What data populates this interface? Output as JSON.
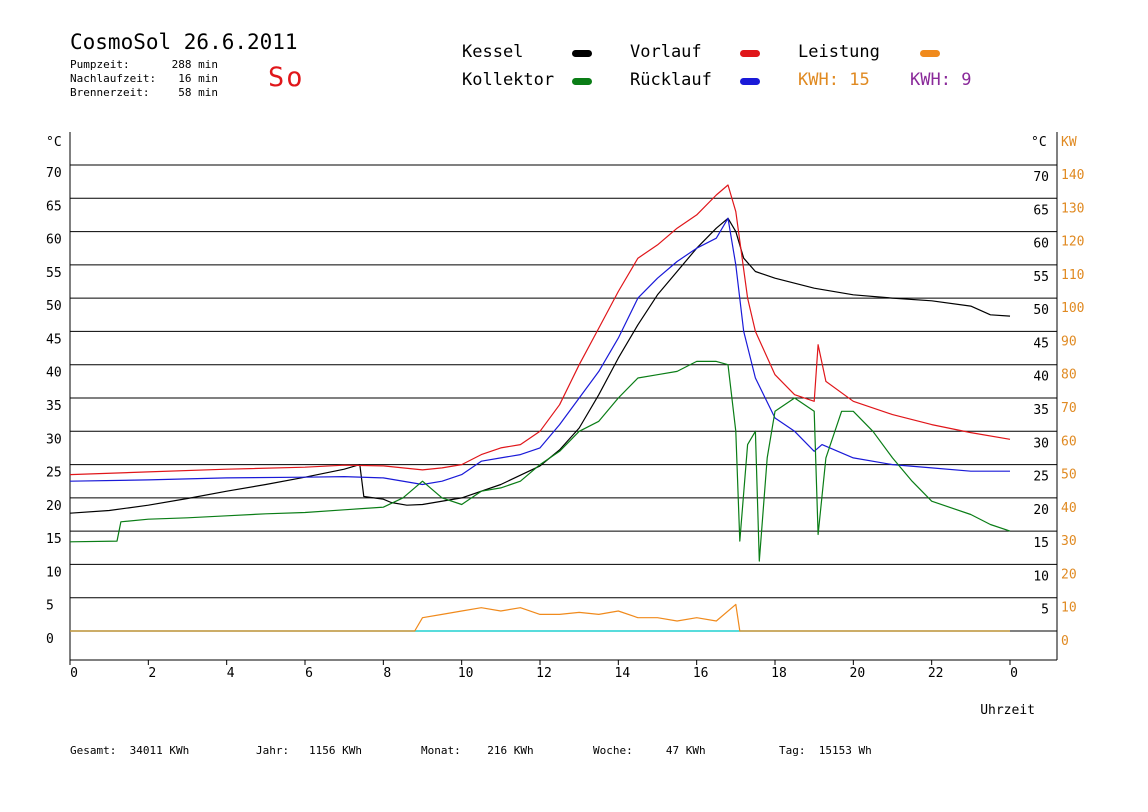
{
  "header": {
    "title": "CosmoSol 26.6.2011",
    "day": "So",
    "stats": [
      {
        "label": "Pumpzeit:",
        "value": "288 min"
      },
      {
        "label": "Nachlaufzeit:",
        "value": "16 min"
      },
      {
        "label": "Brennerzeit:",
        "value": "58 min"
      }
    ]
  },
  "legend": {
    "kessel": {
      "label": "Kessel",
      "color": "#000000"
    },
    "vorlauf": {
      "label": "Vorlauf",
      "color": "#e0161a"
    },
    "leistung": {
      "label": "Leistung",
      "color": "#f08a1c"
    },
    "kollektor": {
      "label": "Kollektor",
      "color": "#0a7d16"
    },
    "ruecklauf": {
      "label": "Rücklauf",
      "color": "#1a1ad8"
    },
    "kwh1": {
      "label": "KWH:",
      "value": "15",
      "color": "#e08a22"
    },
    "kwh2": {
      "label": "KWH:",
      "value": "9",
      "color": "#8a2a9a"
    }
  },
  "footer": {
    "gesamt": {
      "label": "Gesamt:",
      "value": "34011 KWh"
    },
    "jahr": {
      "label": "Jahr:",
      "value": "1156 KWh"
    },
    "monat": {
      "label": "Monat:",
      "value": "216 KWh"
    },
    "woche": {
      "label": "Woche:",
      "value": "47 KWh"
    },
    "tag": {
      "label": "Tag:",
      "value": "15153 Wh"
    }
  },
  "chart_data": {
    "type": "line",
    "xlabel": "Uhrzeit",
    "ylabel_left": "°C",
    "ylabel_right_temp": "°C",
    "ylabel_right_power": "KW",
    "xlim": [
      0,
      24
    ],
    "ylim": [
      -3,
      73
    ],
    "x_ticks": [
      "0",
      "2",
      "4",
      "6",
      "8",
      "10",
      "12",
      "14",
      "16",
      "18",
      "20",
      "22",
      "0"
    ],
    "y_ticks_left": [
      0,
      5,
      10,
      15,
      20,
      25,
      30,
      35,
      40,
      45,
      50,
      55,
      60,
      65,
      70
    ],
    "y_ticks_right_temp": [
      5,
      10,
      15,
      20,
      25,
      30,
      35,
      40,
      45,
      50,
      55,
      60,
      65,
      70
    ],
    "y_ticks_right_kw": [
      0,
      10,
      20,
      30,
      40,
      50,
      60,
      70,
      80,
      90,
      100,
      110,
      120,
      130,
      140
    ],
    "grid": true,
    "series": [
      {
        "name": "Kessel",
        "color": "#000000",
        "points": [
          [
            0,
            17.7
          ],
          [
            1,
            18.1
          ],
          [
            2,
            18.9
          ],
          [
            3,
            19.9
          ],
          [
            4,
            21.0
          ],
          [
            5,
            22.0
          ],
          [
            6,
            23.1
          ],
          [
            7,
            24.3
          ],
          [
            7.4,
            25.0
          ],
          [
            7.5,
            20.2
          ],
          [
            8,
            19.8
          ],
          [
            8.2,
            19.3
          ],
          [
            8.6,
            18.9
          ],
          [
            9,
            19.0
          ],
          [
            10,
            20.0
          ],
          [
            11,
            22.0
          ],
          [
            12,
            24.8
          ],
          [
            12.5,
            27.2
          ],
          [
            13,
            30.5
          ],
          [
            13.5,
            35.5
          ],
          [
            14,
            41.0
          ],
          [
            14.5,
            46.0
          ],
          [
            15,
            50.5
          ],
          [
            15.5,
            54.0
          ],
          [
            16,
            57.5
          ],
          [
            16.5,
            60.5
          ],
          [
            16.8,
            62.0
          ],
          [
            17,
            60.0
          ],
          [
            17.2,
            56.0
          ],
          [
            17.5,
            54.0
          ],
          [
            18,
            53.0
          ],
          [
            19,
            51.5
          ],
          [
            20,
            50.5
          ],
          [
            21,
            50.0
          ],
          [
            22,
            49.6
          ],
          [
            23,
            48.8
          ],
          [
            23.5,
            47.5
          ],
          [
            24,
            47.3
          ]
        ]
      },
      {
        "name": "Vorlauf",
        "color": "#e0161a",
        "points": [
          [
            0,
            23.5
          ],
          [
            2,
            23.9
          ],
          [
            4,
            24.3
          ],
          [
            6,
            24.6
          ],
          [
            7,
            24.9
          ],
          [
            8,
            24.8
          ],
          [
            9,
            24.2
          ],
          [
            9.5,
            24.5
          ],
          [
            10,
            25.0
          ],
          [
            10.5,
            26.5
          ],
          [
            11,
            27.5
          ],
          [
            11.5,
            28.0
          ],
          [
            12,
            30.0
          ],
          [
            12.5,
            34.0
          ],
          [
            13,
            40.0
          ],
          [
            13.5,
            45.5
          ],
          [
            14,
            51.0
          ],
          [
            14.5,
            56.0
          ],
          [
            15,
            58.0
          ],
          [
            15.5,
            60.5
          ],
          [
            16,
            62.5
          ],
          [
            16.5,
            65.5
          ],
          [
            16.8,
            67.0
          ],
          [
            17,
            63.0
          ],
          [
            17.3,
            50.0
          ],
          [
            17.5,
            45.0
          ],
          [
            18,
            38.5
          ],
          [
            18.5,
            35.5
          ],
          [
            19,
            34.5
          ],
          [
            19.1,
            43.0
          ],
          [
            19.3,
            37.5
          ],
          [
            20,
            34.5
          ],
          [
            21,
            32.5
          ],
          [
            22,
            31.0
          ],
          [
            23,
            29.8
          ],
          [
            24,
            28.8
          ]
        ]
      },
      {
        "name": "Rücklauf",
        "color": "#1a1ad8",
        "points": [
          [
            0,
            22.5
          ],
          [
            2,
            22.7
          ],
          [
            4,
            23.0
          ],
          [
            6,
            23.1
          ],
          [
            7,
            23.2
          ],
          [
            8,
            23.0
          ],
          [
            9,
            22.0
          ],
          [
            9.5,
            22.5
          ],
          [
            10,
            23.5
          ],
          [
            10.5,
            25.5
          ],
          [
            11,
            26.0
          ],
          [
            11.5,
            26.5
          ],
          [
            12,
            27.5
          ],
          [
            12.5,
            31.0
          ],
          [
            13,
            35.0
          ],
          [
            13.5,
            39.0
          ],
          [
            14,
            44.0
          ],
          [
            14.5,
            50.0
          ],
          [
            15,
            53.0
          ],
          [
            15.5,
            55.5
          ],
          [
            16,
            57.5
          ],
          [
            16.5,
            59.0
          ],
          [
            16.8,
            62.0
          ],
          [
            17,
            55.0
          ],
          [
            17.2,
            45.0
          ],
          [
            17.5,
            38.0
          ],
          [
            18,
            32.0
          ],
          [
            18.5,
            30.0
          ],
          [
            19,
            27.0
          ],
          [
            19.2,
            28.0
          ],
          [
            20,
            26.0
          ],
          [
            21,
            25.0
          ],
          [
            22,
            24.5
          ],
          [
            23,
            24.0
          ],
          [
            24,
            24.0
          ]
        ]
      },
      {
        "name": "Kollektor",
        "color": "#0a7d16",
        "points": [
          [
            0,
            13.4
          ],
          [
            1.2,
            13.5
          ],
          [
            1.3,
            16.4
          ],
          [
            2,
            16.8
          ],
          [
            3,
            17.0
          ],
          [
            4,
            17.3
          ],
          [
            5,
            17.6
          ],
          [
            6,
            17.8
          ],
          [
            7,
            18.2
          ],
          [
            8,
            18.6
          ],
          [
            8.5,
            20.0
          ],
          [
            9,
            22.5
          ],
          [
            9.5,
            20.0
          ],
          [
            10,
            19.0
          ],
          [
            10.5,
            21.0
          ],
          [
            11,
            21.5
          ],
          [
            11.5,
            22.5
          ],
          [
            12,
            25.0
          ],
          [
            12.5,
            27.0
          ],
          [
            13,
            30.0
          ],
          [
            13.5,
            31.5
          ],
          [
            14,
            35.0
          ],
          [
            14.5,
            38.0
          ],
          [
            15,
            38.5
          ],
          [
            15.5,
            39.0
          ],
          [
            16,
            40.5
          ],
          [
            16.5,
            40.5
          ],
          [
            16.8,
            40.0
          ],
          [
            17,
            30.0
          ],
          [
            17.1,
            13.5
          ],
          [
            17.3,
            28.0
          ],
          [
            17.5,
            30.0
          ],
          [
            17.6,
            10.5
          ],
          [
            17.8,
            26.0
          ],
          [
            18,
            33.0
          ],
          [
            18.5,
            35.0
          ],
          [
            19,
            33.0
          ],
          [
            19.1,
            14.5
          ],
          [
            19.3,
            26.0
          ],
          [
            19.7,
            33.0
          ],
          [
            20,
            33.0
          ],
          [
            20.5,
            30.0
          ],
          [
            21,
            26.0
          ],
          [
            21.5,
            22.5
          ],
          [
            22,
            19.5
          ],
          [
            23,
            17.5
          ],
          [
            23.5,
            16.0
          ],
          [
            24,
            15.0
          ]
        ]
      },
      {
        "name": "Leistung",
        "color": "#f08a1c",
        "points": [
          [
            0,
            0
          ],
          [
            8.8,
            0
          ],
          [
            9,
            2
          ],
          [
            9.5,
            2.5
          ],
          [
            10,
            3
          ],
          [
            10.5,
            3.5
          ],
          [
            11,
            3
          ],
          [
            11.5,
            3.5
          ],
          [
            12,
            2.5
          ],
          [
            12.5,
            2.5
          ],
          [
            13,
            2.8
          ],
          [
            13.5,
            2.5
          ],
          [
            14,
            3
          ],
          [
            14.5,
            2
          ],
          [
            15,
            2
          ],
          [
            15.5,
            1.5
          ],
          [
            16,
            2
          ],
          [
            16.5,
            1.5
          ],
          [
            17,
            4
          ],
          [
            17.1,
            0
          ],
          [
            24,
            0
          ]
        ]
      }
    ]
  }
}
